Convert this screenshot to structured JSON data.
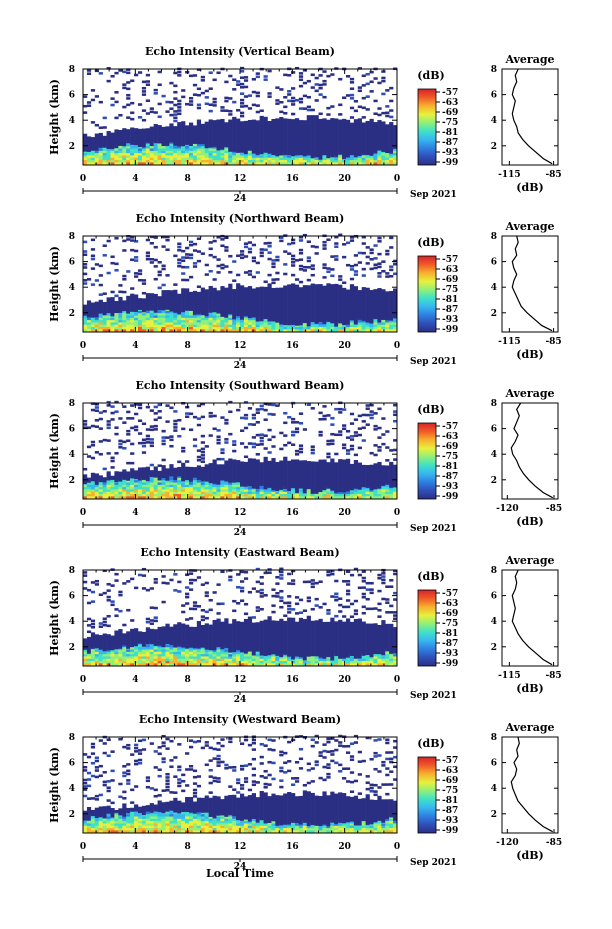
{
  "figure": {
    "xlabel": "Local Time",
    "date_label": "Sep 2021",
    "day_label": "24",
    "colorbar_unit": "(dB)",
    "colorbar_ticks": [
      "-57",
      "-63",
      "-69",
      "-75",
      "-81",
      "-87",
      "-93",
      "-99"
    ],
    "colormap": [
      "#2b2f84",
      "#2f4fb8",
      "#2f7fe0",
      "#37b6f0",
      "#3fe0c8",
      "#8ff07a",
      "#e8f03c",
      "#f7b02e",
      "#f05a28",
      "#d8242a"
    ],
    "colorbar_range": [
      -99,
      -57
    ]
  },
  "chart_data": [
    {
      "type": "heatmap",
      "title": "Echo Intensity (Vertical Beam)",
      "ylabel": "Height (km)",
      "xlim": [
        0,
        24
      ],
      "ylim": [
        0.5,
        8
      ],
      "xticks": [
        "0",
        "4",
        "8",
        "12",
        "16",
        "20",
        "0"
      ],
      "yticks": [
        "2",
        "4",
        "6",
        "8"
      ],
      "profile": {
        "title": "Average",
        "xlabel": "(dB)",
        "xticks": [
          "-115",
          "-85"
        ],
        "xlim": [
          -120,
          -82
        ],
        "y": [
          0.6,
          1.0,
          1.5,
          2.0,
          2.5,
          3.0,
          3.5,
          4.0,
          4.5,
          5.0,
          5.5,
          6.0,
          6.5,
          7.0,
          7.5,
          8.0
        ],
        "x": [
          -86,
          -92,
          -97,
          -102,
          -106,
          -109,
          -110,
          -112,
          -113,
          -112,
          -111,
          -113,
          -112,
          -110,
          -111,
          -109
        ]
      }
    },
    {
      "type": "heatmap",
      "title": "Echo Intensity (Northward Beam)",
      "ylabel": "Height (km)",
      "xlim": [
        0,
        24
      ],
      "ylim": [
        0.5,
        8
      ],
      "xticks": [
        "0",
        "4",
        "8",
        "12",
        "16",
        "20",
        "0"
      ],
      "yticks": [
        "2",
        "4",
        "6",
        "8"
      ],
      "profile": {
        "title": "Average",
        "xlabel": "(dB)",
        "xticks": [
          "-115",
          "-85"
        ],
        "xlim": [
          -120,
          -82
        ],
        "y": [
          0.6,
          1.0,
          1.5,
          2.0,
          2.5,
          3.0,
          3.5,
          4.0,
          4.5,
          5.0,
          5.5,
          6.0,
          6.5,
          7.0,
          7.5,
          8.0
        ],
        "x": [
          -86,
          -93,
          -98,
          -103,
          -107,
          -109,
          -111,
          -113,
          -112,
          -110,
          -112,
          -113,
          -110,
          -111,
          -109,
          -110
        ]
      }
    },
    {
      "type": "heatmap",
      "title": "Echo Intensity (Southward Beam)",
      "ylabel": "Height (km)",
      "xlim": [
        0,
        24
      ],
      "ylim": [
        0.5,
        8
      ],
      "xticks": [
        "0",
        "4",
        "8",
        "12",
        "16",
        "20",
        "0"
      ],
      "yticks": [
        "2",
        "4",
        "6",
        "8"
      ],
      "profile": {
        "title": "Average",
        "xlabel": "(dB)",
        "xticks": [
          "-120",
          "-85"
        ],
        "xlim": [
          -124,
          -82
        ],
        "y": [
          0.6,
          1.0,
          1.5,
          2.0,
          2.5,
          3.0,
          3.5,
          4.0,
          4.5,
          5.0,
          5.5,
          6.0,
          6.5,
          7.0,
          7.5,
          8.0
        ],
        "x": [
          -86,
          -93,
          -99,
          -104,
          -108,
          -111,
          -113,
          -116,
          -117,
          -114,
          -112,
          -115,
          -113,
          -111,
          -113,
          -110
        ]
      }
    },
    {
      "type": "heatmap",
      "title": "Echo Intensity (Eastward Beam)",
      "ylabel": "Height (km)",
      "xlim": [
        0,
        24
      ],
      "ylim": [
        0.5,
        8
      ],
      "xticks": [
        "0",
        "4",
        "8",
        "12",
        "16",
        "20",
        "0"
      ],
      "yticks": [
        "2",
        "4",
        "6",
        "8"
      ],
      "profile": {
        "title": "Average",
        "xlabel": "(dB)",
        "xticks": [
          "-115",
          "-85"
        ],
        "xlim": [
          -120,
          -82
        ],
        "y": [
          0.6,
          1.0,
          1.5,
          2.0,
          2.5,
          3.0,
          3.5,
          4.0,
          4.5,
          5.0,
          5.5,
          6.0,
          6.5,
          7.0,
          7.5,
          8.0
        ],
        "x": [
          -86,
          -92,
          -97,
          -102,
          -106,
          -109,
          -111,
          -113,
          -112,
          -111,
          -112,
          -113,
          -111,
          -110,
          -111,
          -109
        ]
      }
    },
    {
      "type": "heatmap",
      "title": "Echo Intensity (Westward Beam)",
      "ylabel": "Height (km)",
      "xlim": [
        0,
        24
      ],
      "ylim": [
        0.5,
        8
      ],
      "xticks": [
        "0",
        "4",
        "8",
        "12",
        "16",
        "20",
        "0"
      ],
      "yticks": [
        "2",
        "4",
        "6",
        "8"
      ],
      "profile": {
        "title": "Average",
        "xlabel": "(dB)",
        "xticks": [
          "-120",
          "-85"
        ],
        "xlim": [
          -124,
          -82
        ],
        "y": [
          0.6,
          1.0,
          1.5,
          2.0,
          2.5,
          3.0,
          3.5,
          4.0,
          4.5,
          5.0,
          5.5,
          6.0,
          6.5,
          7.0,
          7.5,
          8.0
        ],
        "x": [
          -86,
          -93,
          -99,
          -104,
          -108,
          -112,
          -114,
          -116,
          -117,
          -114,
          -113,
          -115,
          -112,
          -113,
          -111,
          -112
        ]
      }
    }
  ]
}
